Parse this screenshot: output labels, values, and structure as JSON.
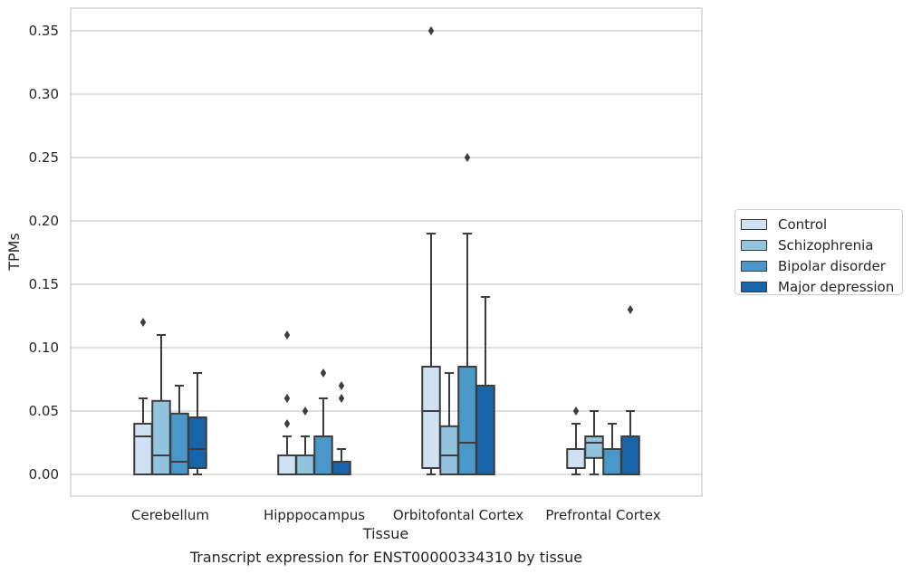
{
  "chart_data": {
    "type": "box",
    "title": "",
    "caption": "Transcript expression for ENST00000334310 by tissue",
    "xlabel": "Tissue",
    "ylabel": "TPMs",
    "ylim": [
      -0.017,
      0.368
    ],
    "yticks": [
      "0.00",
      "0.05",
      "0.10",
      "0.15",
      "0.20",
      "0.25",
      "0.30",
      "0.35"
    ],
    "grid": true,
    "legend_placement": "outside-right",
    "categories": [
      "Cerebellum",
      "Hipppocampus",
      "Orbitofontal Cortex",
      "Prefrontal Cortex"
    ],
    "series": [
      {
        "name": "Control",
        "color": "#cfe1f2",
        "boxes": [
          {
            "q1": 0.0,
            "median": 0.03,
            "q3": 0.04,
            "whislo": 0.0,
            "whishi": 0.06,
            "fliers": [
              0.12
            ]
          },
          {
            "q1": 0.0,
            "median": 0.0,
            "q3": 0.015,
            "whislo": 0.0,
            "whishi": 0.03,
            "fliers": [
              0.04,
              0.06,
              0.11
            ]
          },
          {
            "q1": 0.005,
            "median": 0.05,
            "q3": 0.085,
            "whislo": 0.0,
            "whishi": 0.19,
            "fliers": [
              0.35
            ]
          },
          {
            "q1": 0.005,
            "median": 0.005,
            "q3": 0.02,
            "whislo": 0.0,
            "whishi": 0.04,
            "fliers": [
              0.05
            ]
          }
        ]
      },
      {
        "name": "Schizophrenia",
        "color": "#93c4de",
        "boxes": [
          {
            "q1": 0.0,
            "median": 0.015,
            "q3": 0.058,
            "whislo": 0.0,
            "whishi": 0.11,
            "fliers": []
          },
          {
            "q1": 0.0,
            "median": 0.0,
            "q3": 0.015,
            "whislo": 0.0,
            "whishi": 0.03,
            "fliers": [
              0.05
            ]
          },
          {
            "q1": 0.0,
            "median": 0.015,
            "q3": 0.038,
            "whislo": 0.0,
            "whishi": 0.08,
            "fliers": []
          },
          {
            "q1": 0.013,
            "median": 0.025,
            "q3": 0.03,
            "whislo": 0.0,
            "whishi": 0.05,
            "fliers": []
          }
        ]
      },
      {
        "name": "Bipolar disorder",
        "color": "#4a98c9",
        "boxes": [
          {
            "q1": 0.0,
            "median": 0.01,
            "q3": 0.048,
            "whislo": 0.0,
            "whishi": 0.07,
            "fliers": []
          },
          {
            "q1": 0.0,
            "median": 0.0,
            "q3": 0.03,
            "whislo": 0.0,
            "whishi": 0.06,
            "fliers": [
              0.08
            ]
          },
          {
            "q1": 0.0,
            "median": 0.025,
            "q3": 0.085,
            "whislo": 0.0,
            "whishi": 0.19,
            "fliers": [
              0.25
            ]
          },
          {
            "q1": 0.0,
            "median": 0.0,
            "q3": 0.02,
            "whislo": 0.0,
            "whishi": 0.04,
            "fliers": []
          }
        ]
      },
      {
        "name": "Major depression",
        "color": "#1764ab",
        "boxes": [
          {
            "q1": 0.005,
            "median": 0.02,
            "q3": 0.045,
            "whislo": 0.0,
            "whishi": 0.08,
            "fliers": []
          },
          {
            "q1": 0.0,
            "median": 0.0,
            "q3": 0.01,
            "whislo": 0.0,
            "whishi": 0.02,
            "fliers": [
              0.06,
              0.07
            ]
          },
          {
            "q1": 0.0,
            "median": 0.0,
            "q3": 0.07,
            "whislo": 0.0,
            "whishi": 0.14,
            "fliers": []
          },
          {
            "q1": 0.0,
            "median": 0.0,
            "q3": 0.03,
            "whislo": 0.0,
            "whishi": 0.05,
            "fliers": [
              0.13
            ]
          }
        ]
      }
    ]
  }
}
